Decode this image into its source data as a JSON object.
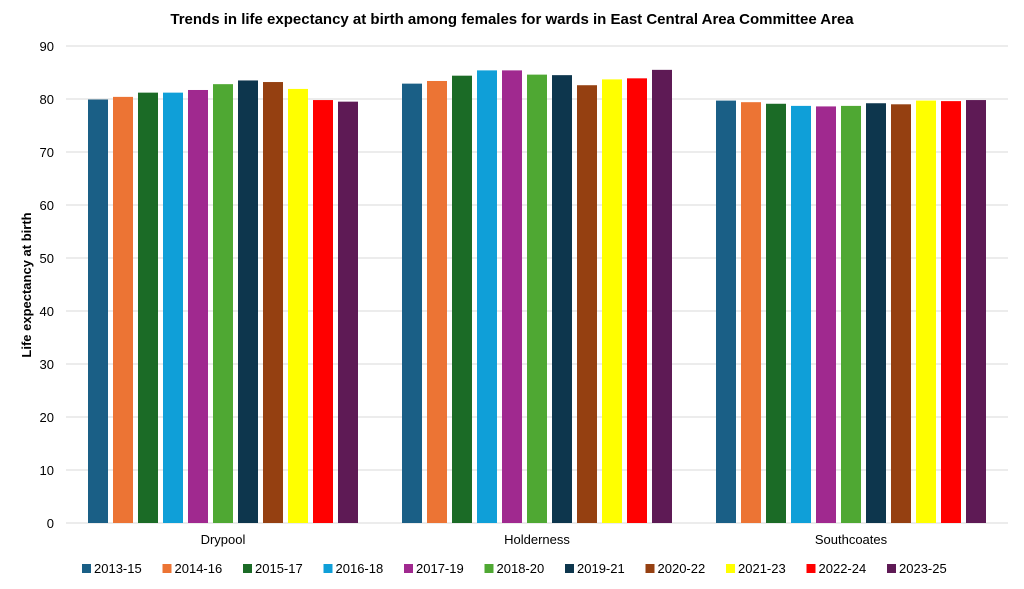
{
  "chart_data": {
    "type": "bar",
    "title": "Trends in life expectancy at birth among females for wards in East Central Area Committee Area",
    "xlabel": "",
    "ylabel": "Life expectancy at birth",
    "ylim": [
      0,
      90
    ],
    "yticks": [
      0,
      10,
      20,
      30,
      40,
      50,
      60,
      70,
      80,
      90
    ],
    "grid": true,
    "legend_position": "bottom",
    "categories": [
      "Drypool",
      "Holderness",
      "Southcoates"
    ],
    "series": [
      {
        "name": "2013-15",
        "color": "#1a5f86",
        "values": [
          79.9,
          82.9,
          79.7
        ]
      },
      {
        "name": "2014-16",
        "color": "#ec7434",
        "values": [
          80.4,
          83.4,
          79.4
        ]
      },
      {
        "name": "2015-17",
        "color": "#1b6b26",
        "values": [
          81.2,
          84.4,
          79.1
        ]
      },
      {
        "name": "2016-18",
        "color": "#0f9fd8",
        "values": [
          81.2,
          85.4,
          78.7
        ]
      },
      {
        "name": "2017-19",
        "color": "#a0298f",
        "values": [
          81.7,
          85.4,
          78.6
        ]
      },
      {
        "name": "2018-20",
        "color": "#4fa833",
        "values": [
          82.8,
          84.6,
          78.7
        ]
      },
      {
        "name": "2019-21",
        "color": "#0d364d",
        "values": [
          83.5,
          84.5,
          79.2
        ]
      },
      {
        "name": "2020-22",
        "color": "#954011",
        "values": [
          83.2,
          82.6,
          79.0
        ]
      },
      {
        "name": "2021-23",
        "color": "#ffff00",
        "values": [
          81.9,
          83.7,
          79.7
        ]
      },
      {
        "name": "2022-24",
        "color": "#ff0000",
        "values": [
          79.8,
          83.9,
          79.6
        ]
      },
      {
        "name": "2023-25",
        "color": "#5e1a55",
        "values": [
          79.5,
          85.5,
          79.8
        ]
      }
    ]
  }
}
